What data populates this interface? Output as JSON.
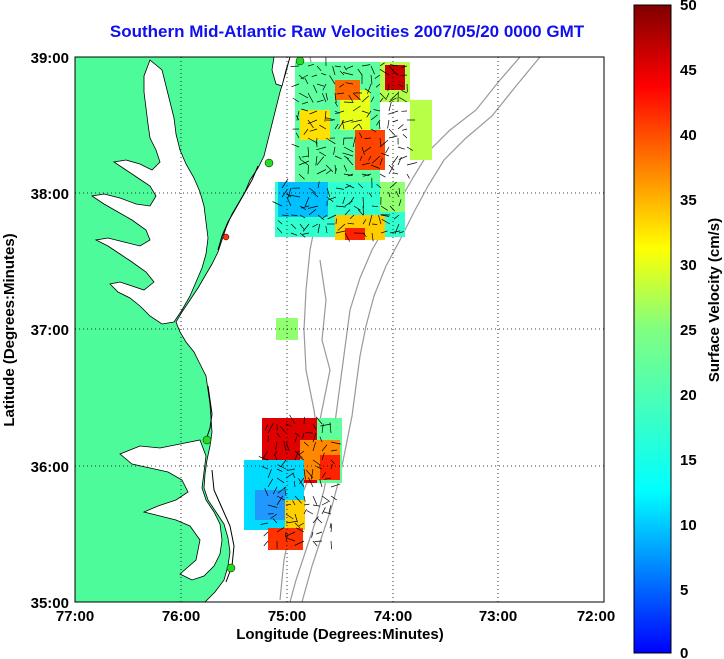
{
  "title": "Southern Mid-Atlantic Raw Velocities 2007/05/20 0000 GMT",
  "xlabel": "Longitude (Degrees:Minutes)",
  "ylabel": "Latitude (Degrees:Minutes)",
  "x_ticks": [
    "77:00",
    "76:00",
    "75:00",
    "74:00",
    "73:00",
    "72:00"
  ],
  "y_ticks": [
    "39:00",
    "38:00",
    "37:00",
    "36:00",
    "35:00"
  ],
  "colorbar": {
    "label": "Surface Velocity (cm/s)",
    "ticks": [
      "50",
      "45",
      "40",
      "35",
      "30",
      "25",
      "20",
      "15",
      "10",
      "5",
      "0"
    ],
    "range": [
      0,
      50
    ]
  },
  "colors": {
    "title": "#1010ee",
    "land": "#4dfb9a",
    "water": "#ffffff",
    "coastline": "#000000",
    "bathymetry": "#999999",
    "station": "#22dd22"
  }
}
